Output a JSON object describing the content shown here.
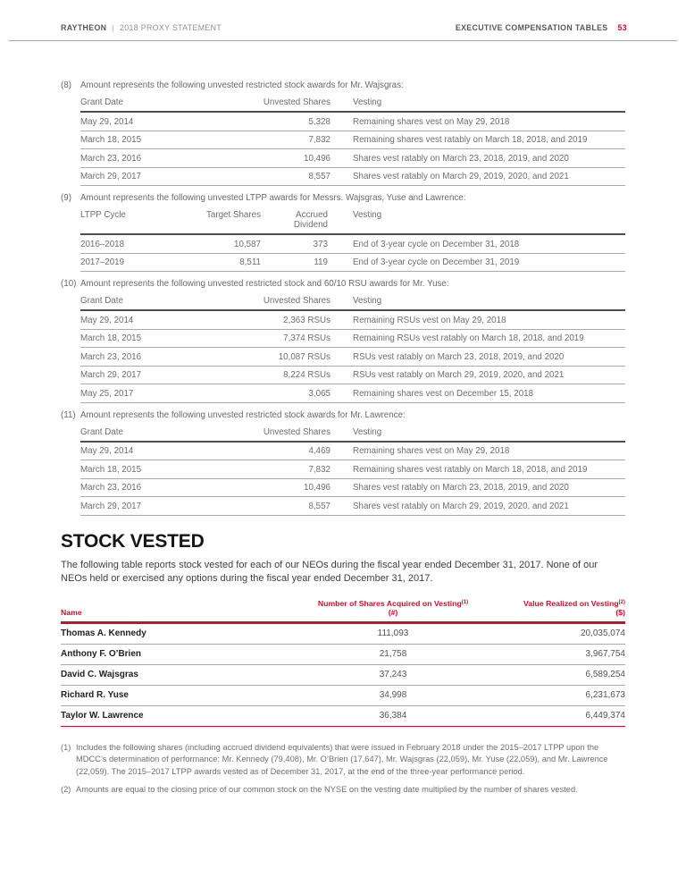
{
  "colors": {
    "accent_red": "#C8102E",
    "table_text_gray": "#6D6E71",
    "name_text_dark": "#232021"
  },
  "header": {
    "brand": "RAYTHEON",
    "separator": "|",
    "doc_title": "2018 PROXY STATEMENT",
    "section": "EXECUTIVE COMPENSATION TABLES",
    "page_number": "53"
  },
  "footnote_tables": [
    {
      "number": "(8)",
      "intro": "Amount represents the following unvested restricted stock awards for Mr. Wajsgras:",
      "columns": [
        "Grant Date",
        "Unvested Shares",
        "Vesting"
      ],
      "rows": [
        [
          "May 29, 2014",
          "5,328",
          "Remaining shares vest on May 29, 2018"
        ],
        [
          "March 18, 2015",
          "7,832",
          "Remaining shares vest ratably on March 18, 2018, and 2019"
        ],
        [
          "March 23, 2016",
          "10,496",
          "Shares vest ratably on March 23, 2018, 2019, and 2020"
        ],
        [
          "March 29, 2017",
          "8,557",
          "Shares vest ratably on March 29, 2019, 2020, and 2021"
        ]
      ]
    },
    {
      "number": "(9)",
      "intro": "Amount represents the following unvested LTPP awards for Messrs. Wajsgras, Yuse and Lawrence:",
      "columns": [
        "LTPP Cycle",
        "Target Shares",
        "Accrued Dividend",
        "Vesting"
      ],
      "rows": [
        [
          "2016–2018",
          "10,587",
          "373",
          "End of 3-year cycle on December 31, 2018"
        ],
        [
          "2017–2019",
          "8,511",
          "119",
          "End of 3-year cycle on December 31, 2019"
        ]
      ]
    },
    {
      "number": "(10)",
      "intro": "Amount represents the following unvested restricted stock and 60/10 RSU awards for Mr. Yuse:",
      "columns": [
        "Grant Date",
        "Unvested Shares",
        "Vesting"
      ],
      "rows": [
        [
          "May 29, 2014",
          "2,363 RSUs",
          "Remaining RSUs vest on May 29, 2018"
        ],
        [
          "March 18, 2015",
          "7,374 RSUs",
          "Remaining RSUs vest ratably on March 18, 2018, and 2019"
        ],
        [
          "March 23, 2016",
          "10,087 RSUs",
          "RSUs vest ratably on March 23, 2018, 2019, and 2020"
        ],
        [
          "March 29, 2017",
          "8,224 RSUs",
          "RSUs vest ratably on March 29, 2019, 2020, and 2021"
        ],
        [
          "May 25, 2017",
          "3,065",
          "Remaining shares vest on December 15, 2018"
        ]
      ]
    },
    {
      "number": "(11)",
      "intro": "Amount represents the following unvested restricted stock awards for Mr. Lawrence:",
      "columns": [
        "Grant Date",
        "Unvested Shares",
        "Vesting"
      ],
      "rows": [
        [
          "May 29, 2014",
          "4,469",
          "Remaining shares vest on May 29, 2018"
        ],
        [
          "March 18, 2015",
          "7,832",
          "Remaining shares vest ratably on March 18, 2018, and 2019"
        ],
        [
          "March 23, 2016",
          "10,496",
          "Shares vest ratably on March 23, 2018, 2019, and 2020"
        ],
        [
          "March 29, 2017",
          "8,557",
          "Shares vest ratably on March 29, 2019, 2020, and 2021"
        ]
      ]
    }
  ],
  "stock_vested": {
    "title": "STOCK VESTED",
    "intro": "The following table reports stock vested for each of our NEOs during the fiscal year ended December 31, 2017. None of our NEOs held or exercised any options during the fiscal year ended December 31, 2017.",
    "table": {
      "col1_header": "Name",
      "col2_header": "Number of Shares Acquired on Vesting",
      "col2_sup": "(1)",
      "col2_unit": "(#)",
      "col3_header": "Value Realized on Vesting",
      "col3_sup": "(2)",
      "col3_unit": "($)",
      "rows": [
        {
          "name": "Thomas A. Kennedy",
          "shares": "111,093",
          "value": "20,035,074"
        },
        {
          "name": "Anthony F. O’Brien",
          "shares": "21,758",
          "value": "3,967,754"
        },
        {
          "name": "David C. Wajsgras",
          "shares": "37,243",
          "value": "6,589,254"
        },
        {
          "name": "Richard R. Yuse",
          "shares": "34,998",
          "value": "6,231,673"
        },
        {
          "name": "Taylor W. Lawrence",
          "shares": "36,384",
          "value": "6,449,374"
        }
      ]
    },
    "footnotes": [
      {
        "number": "(1)",
        "text": "Includes the following shares (including accrued dividend equivalents) that were issued in February 2018 under the 2015–2017 LTPP upon the MDCC’s determination of performance: Mr. Kennedy (79,408), Mr. O’Brien (17,647), Mr. Wajsgras (22,059), Mr. Yuse (22,059), and Mr. Lawrence (22,059). The 2015–2017 LTPP awards vested as of December 31, 2017, at the end of the three-year performance period."
      },
      {
        "number": "(2)",
        "text": "Amounts are equal to the closing price of our common stock on the NYSE on the vesting date multiplied by the number of shares vested."
      }
    ]
  }
}
